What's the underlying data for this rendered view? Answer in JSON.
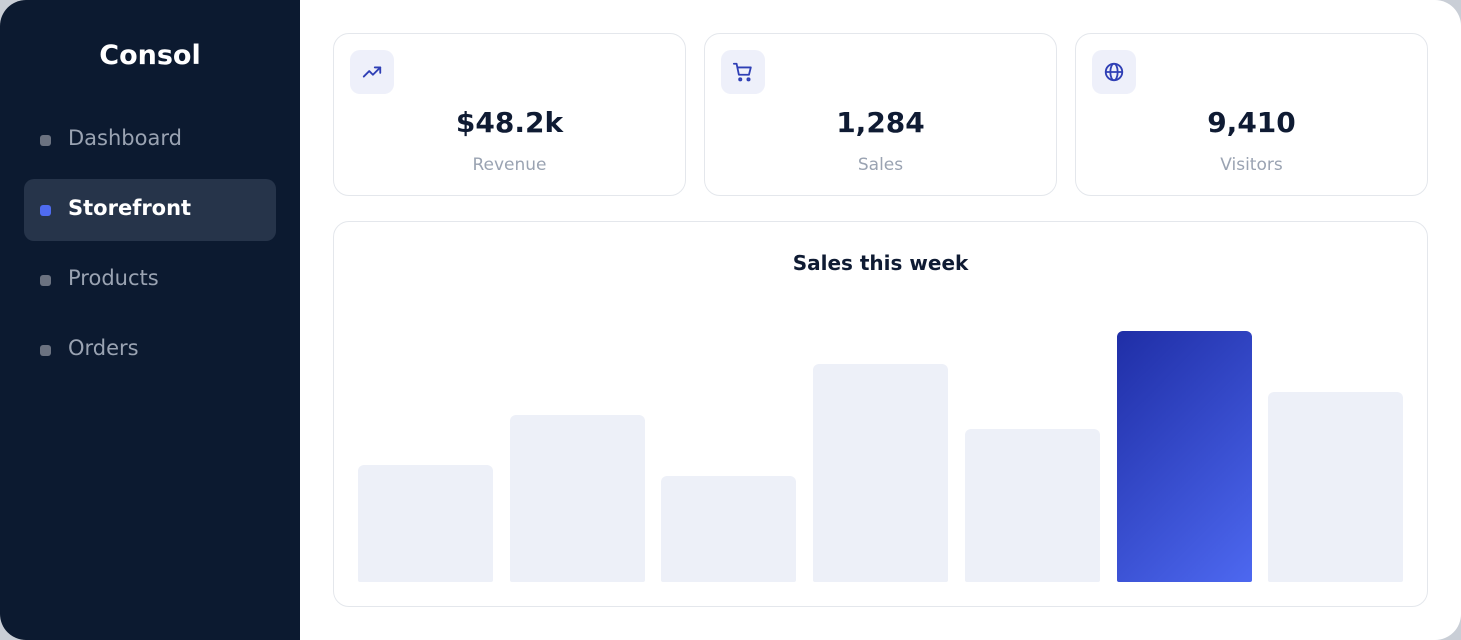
{
  "sidebar": {
    "brand": "Consol",
    "active_index": 1,
    "nav": [
      "Dashboard",
      "Storefront",
      "Products",
      "Orders"
    ]
  },
  "stats": [
    {
      "value": "$48.2k",
      "label": "Revenue"
    },
    {
      "value": "1,284",
      "label": "Sales"
    },
    {
      "value": "9,410",
      "label": "Visitors"
    }
  ],
  "chart_data": {
    "type": "bar",
    "title": "Sales this week",
    "values": [
      117,
      167,
      106,
      218,
      153,
      251,
      190
    ],
    "color": "#edf0f8",
    "highlight_index": 5,
    "highlight_colors": [
      "#1f2ea6",
      "#4d68f0"
    ]
  }
}
